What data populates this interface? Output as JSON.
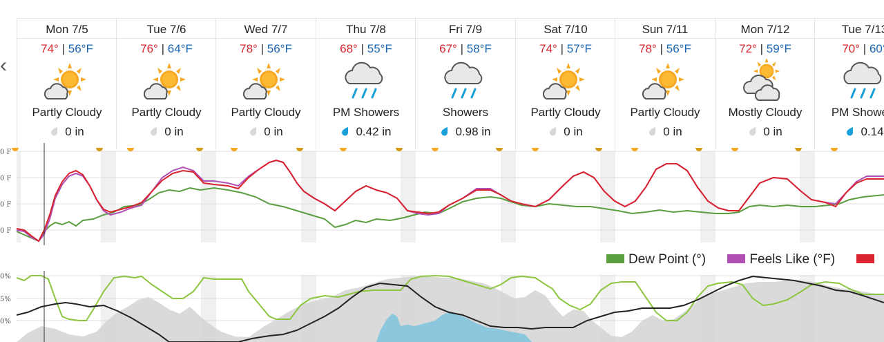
{
  "nav": {
    "prev_icon": "‹"
  },
  "days": [
    {
      "label": "Mon 7/5",
      "hi": "74°",
      "lo": "56°F",
      "icon": "partly-cloudy",
      "cond": "Partly Cloudy",
      "precip": "0 in"
    },
    {
      "label": "Tue 7/6",
      "hi": "76°",
      "lo": "64°F",
      "icon": "partly-cloudy",
      "cond": "Partly Cloudy",
      "precip": "0 in"
    },
    {
      "label": "Wed 7/7",
      "hi": "78°",
      "lo": "56°F",
      "icon": "partly-cloudy",
      "cond": "Partly Cloudy",
      "precip": "0 in"
    },
    {
      "label": "Thu 7/8",
      "hi": "68°",
      "lo": "55°F",
      "icon": "showers",
      "cond": "PM Showers",
      "precip": "0.42 in"
    },
    {
      "label": "Fri 7/9",
      "hi": "67°",
      "lo": "58°F",
      "icon": "showers",
      "cond": "Showers",
      "precip": "0.98 in"
    },
    {
      "label": "Sat 7/10",
      "hi": "74°",
      "lo": "57°F",
      "icon": "partly-cloudy",
      "cond": "Partly Cloudy",
      "precip": "0 in"
    },
    {
      "label": "Sun 7/11",
      "hi": "78°",
      "lo": "56°F",
      "icon": "partly-cloudy",
      "cond": "Partly Cloudy",
      "precip": "0 in"
    },
    {
      "label": "Mon 7/12",
      "hi": "72°",
      "lo": "59°F",
      "icon": "mostly-cloudy",
      "cond": "Mostly Cloudy",
      "precip": "0 in"
    },
    {
      "label": "Tue 7/13",
      "hi": "70°",
      "lo": "60°",
      "icon": "showers",
      "cond": "PM Showers",
      "precip": "0.14"
    }
  ],
  "temp_chart": {
    "y_labels": [
      "0 F",
      "0 F",
      "0 F",
      "0 F"
    ]
  },
  "legend": [
    {
      "label": "Dew Point (°)",
      "color": "#5a9e3f"
    },
    {
      "label": "Feels Like (°F)",
      "color": "#b04fb4"
    },
    {
      "label": "",
      "color": "#d9232e"
    }
  ],
  "bottom_chart": {
    "y_labels": [
      "0%",
      "5%",
      "0%"
    ]
  },
  "colors": {
    "temperature": "#d9232e",
    "feels_like": "#b04fb4",
    "dew_point": "#5a9e3f",
    "humidity": "#8cc63f",
    "pressure": "#222222",
    "cloud_cover": "#cccccc",
    "precip": "#7ec4dd",
    "sun": "#f7a823",
    "rain": "#1aa0d8"
  }
}
